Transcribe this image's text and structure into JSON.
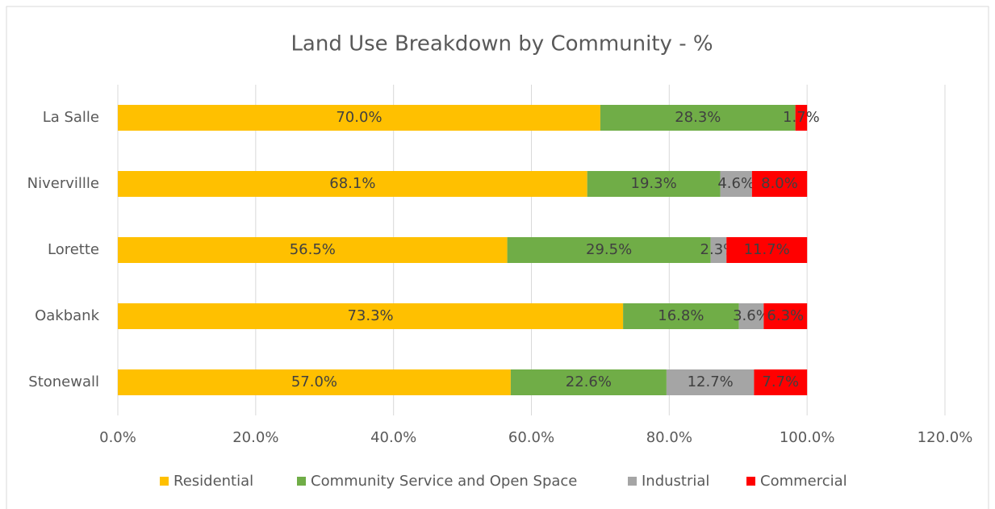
{
  "chart_data": {
    "type": "stacked_barh",
    "title": "Land Use Breakdown by Community - %",
    "categories": [
      "La Salle",
      "Nivervillle",
      "Lorette",
      "Oakbank",
      "Stonewall"
    ],
    "series": [
      {
        "name": "Residential",
        "color": "#ffc000",
        "values": [
          70.0,
          68.1,
          56.5,
          73.3,
          57.0
        ],
        "value_labels": [
          "70.0%",
          "68.1%",
          "56.5%",
          "73.3%",
          "57.0%"
        ]
      },
      {
        "name": "Community Service and Open Space",
        "color": "#70ad47",
        "values": [
          28.3,
          19.3,
          29.5,
          16.8,
          22.6
        ],
        "value_labels": [
          "28.3%",
          "19.3%",
          "29.5%",
          "16.8%",
          "22.6%"
        ]
      },
      {
        "name": "Industrial",
        "color": "#a5a5a5",
        "values": [
          null,
          4.6,
          2.3,
          3.6,
          12.7
        ],
        "value_labels": [
          null,
          "4.6%",
          "2.3%",
          "3.6%",
          "12.7%"
        ]
      },
      {
        "name": "Commercial",
        "color": "#ff0000",
        "values": [
          1.7,
          8.0,
          11.7,
          6.3,
          7.7
        ],
        "value_labels": [
          "1.7%",
          "8.0%",
          "11.7%",
          "6.3%",
          "7.7%"
        ]
      }
    ],
    "xlim": [
      0,
      120
    ],
    "xticks": [
      {
        "value": 0,
        "label": "0.0%"
      },
      {
        "value": 20,
        "label": "20.0%"
      },
      {
        "value": 40,
        "label": "40.0%"
      },
      {
        "value": 60,
        "label": "60.0%"
      },
      {
        "value": 80,
        "label": "80.0%"
      },
      {
        "value": 100,
        "label": "100.0%"
      },
      {
        "value": 120,
        "label": "120.0%"
      }
    ],
    "grid": true,
    "legend": "bottom"
  }
}
